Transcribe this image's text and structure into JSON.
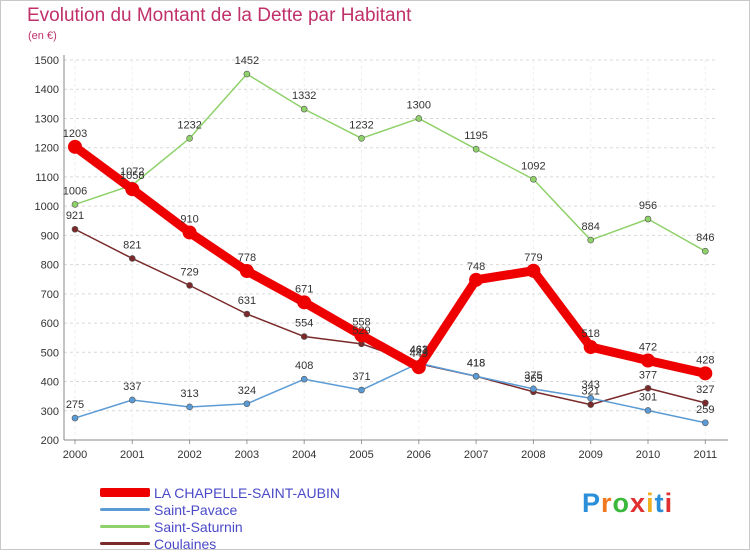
{
  "header": {
    "title": "Evolution du Montant de la Dette par Habitant",
    "subtitle": "(en €)"
  },
  "brand": {
    "text": "Proxiti",
    "letter_colors": [
      "#2a8fd8",
      "#f07820",
      "#3cb83c",
      "#e03030",
      "#f0b020",
      "#2a8fd8",
      "#e03030"
    ]
  },
  "chart_data": {
    "type": "line",
    "title": "Evolution du Montant de la Dette par Habitant",
    "subtitle": "(en €)",
    "xlabel": "",
    "ylabel": "",
    "x": [
      "2000",
      "2001",
      "2002",
      "2003",
      "2004",
      "2005",
      "2006",
      "2007",
      "2008",
      "2009",
      "2010",
      "2011"
    ],
    "ylim": [
      200,
      1500
    ],
    "yticks": [
      200,
      300,
      400,
      500,
      600,
      700,
      800,
      900,
      1000,
      1100,
      1200,
      1300,
      1400,
      1500
    ],
    "grid": "horizontal dashed",
    "legend_position": "bottom-left",
    "series": [
      {
        "name": "LA CHAPELLE-SAINT-AUBIN",
        "color": "#ee0000",
        "values": [
          1203,
          1058,
          910,
          778,
          671,
          558,
          449,
          748,
          779,
          518,
          472,
          428
        ],
        "labels": [
          "1203",
          "1058",
          "910",
          "778",
          "671",
          "558",
          "449",
          "748",
          "779",
          "518",
          "472",
          "428"
        ]
      },
      {
        "name": "Saint-Pavace",
        "color": "#5b9bd5",
        "values": [
          275,
          337,
          313,
          324,
          408,
          371,
          463,
          418,
          375,
          343,
          301,
          259
        ],
        "labels": [
          "275",
          "337",
          "313",
          "324",
          "408",
          "371",
          "463",
          "418",
          "375",
          "343",
          "301",
          "259"
        ]
      },
      {
        "name": "Saint-Saturnin",
        "color": "#8fd16a",
        "values": [
          1006,
          1072,
          1232,
          1452,
          1332,
          1232,
          1300,
          1195,
          1092,
          884,
          956,
          846
        ],
        "labels": [
          "1006",
          "1072",
          "1232",
          "1452",
          "1332",
          "1232",
          "1300",
          "1195",
          "1092",
          "884",
          "956",
          "846"
        ]
      },
      {
        "name": "Coulaines",
        "color": "#7a2a2a",
        "values": [
          921,
          821,
          729,
          631,
          554,
          529,
          461,
          418,
          365,
          321,
          377,
          327
        ],
        "labels": [
          "921",
          "821",
          "729",
          "631",
          "554",
          "529",
          "461",
          "418",
          "365",
          "321",
          "377",
          "327"
        ]
      }
    ]
  }
}
